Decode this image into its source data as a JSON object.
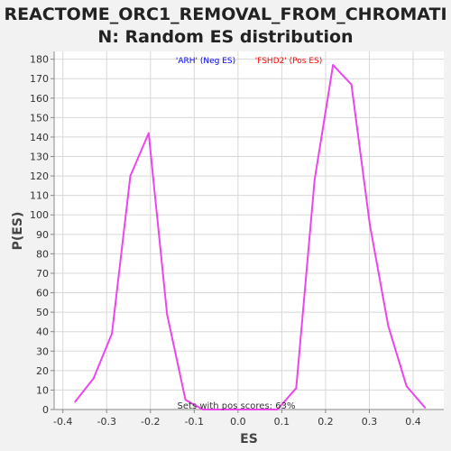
{
  "title_line1": "REACTOME_ORC1_REMOVAL_FROM_CHROMATI",
  "title_line2": "N: Random ES distribution",
  "chart_data": {
    "type": "line",
    "xlabel": "ES",
    "ylabel": "P(ES)",
    "xlim": [
      -0.42,
      0.47
    ],
    "ylim": [
      0,
      184
    ],
    "x_ticks": [
      -0.4,
      -0.3,
      -0.2,
      -0.1,
      0.0,
      0.1,
      0.2,
      0.3,
      0.4
    ],
    "x_tick_labels": [
      "-0.4",
      "-0.3",
      "-0.2",
      "-0.1",
      "0.0",
      "0.1",
      "0.2",
      "0.3",
      "0.4"
    ],
    "y_ticks": [
      0,
      10,
      20,
      30,
      40,
      50,
      60,
      70,
      80,
      90,
      100,
      110,
      120,
      130,
      140,
      150,
      160,
      170,
      180
    ],
    "grid": true,
    "legend": [
      {
        "label": "'ARH' (Neg ES)",
        "color": "#0000ff"
      },
      {
        "label": "'FSHD2' (Pos ES)",
        "color": "#ff0000"
      }
    ],
    "legend_position": "top-center",
    "annotation": "Sets with pos scores: 63%",
    "series": [
      {
        "color": "#ee44ee",
        "points": [
          [
            -0.372,
            4
          ],
          [
            -0.33,
            16
          ],
          [
            -0.288,
            39
          ],
          [
            -0.246,
            120
          ],
          [
            -0.204,
            142
          ],
          [
            -0.162,
            49
          ],
          [
            -0.12,
            5
          ],
          [
            -0.08,
            0
          ],
          [
            0.09,
            0
          ],
          [
            0.133,
            11
          ],
          [
            0.175,
            118
          ],
          [
            0.217,
            177
          ],
          [
            0.259,
            167
          ],
          [
            0.301,
            95
          ],
          [
            0.343,
            43
          ],
          [
            0.385,
            12
          ],
          [
            0.427,
            1
          ]
        ]
      }
    ]
  }
}
